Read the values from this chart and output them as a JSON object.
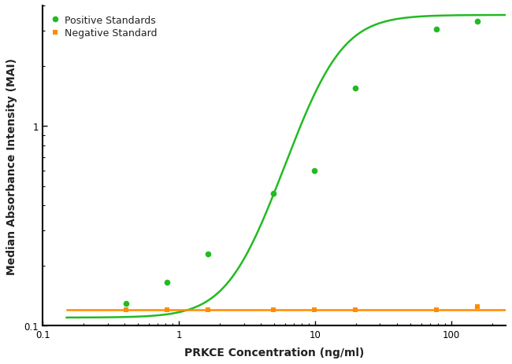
{
  "positive_x": [
    0.41,
    0.82,
    1.64,
    4.92,
    9.84,
    19.68,
    78.0,
    156.0
  ],
  "positive_y": [
    0.13,
    0.165,
    0.23,
    0.46,
    0.6,
    1.55,
    3.05,
    3.35
  ],
  "negative_x": [
    0.41,
    0.82,
    1.64,
    4.92,
    9.84,
    19.68,
    78.0,
    156.0
  ],
  "negative_y": [
    0.12,
    0.12,
    0.12,
    0.12,
    0.12,
    0.12,
    0.12,
    0.125
  ],
  "positive_color": "#22bb22",
  "negative_color": "#ff8c00",
  "xlim_log": [
    -1,
    2.4
  ],
  "ylim_log": [
    -1,
    0.6
  ],
  "xlim": [
    0.1,
    250
  ],
  "ylim": [
    0.1,
    4.0
  ],
  "xlabel": "PRKCE Concentration (ng/ml)",
  "ylabel": "Median Absorbance Intensity (MAI)",
  "legend_positive": "Positive Standards",
  "legend_negative": "Negative Standard",
  "background_color": "#ffffff"
}
